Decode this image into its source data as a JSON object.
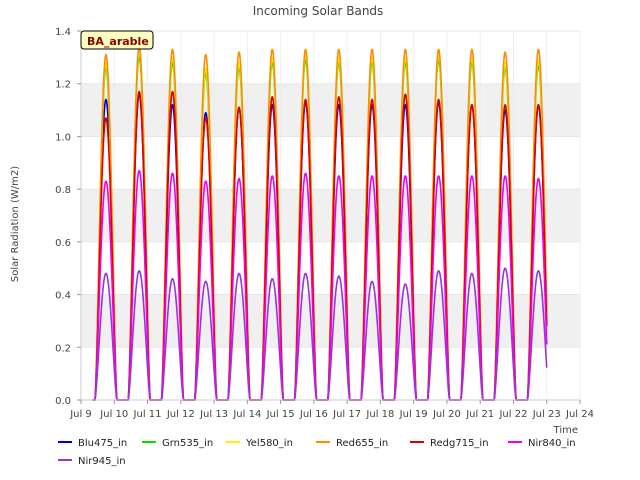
{
  "chart_data": {
    "type": "line",
    "title": "Incoming Solar Bands",
    "xlabel": "Time",
    "ylabel": "Solar Radiation (W/m2)",
    "site_badge": "BA_arable",
    "xlim": [
      9,
      24
    ],
    "ylim": [
      0,
      1.4
    ],
    "x_ticks": [
      {
        "v": 9,
        "label": "Jul 9"
      },
      {
        "v": 10,
        "label": "Jul 10"
      },
      {
        "v": 11,
        "label": "Jul 11"
      },
      {
        "v": 12,
        "label": "Jul 12"
      },
      {
        "v": 13,
        "label": "Jul 13"
      },
      {
        "v": 14,
        "label": "Jul 14"
      },
      {
        "v": 15,
        "label": "Jul 15"
      },
      {
        "v": 16,
        "label": "Jul 16"
      },
      {
        "v": 17,
        "label": "Jul 17"
      },
      {
        "v": 18,
        "label": "Jul 18"
      },
      {
        "v": 19,
        "label": "Jul 19"
      },
      {
        "v": 20,
        "label": "Jul 20"
      },
      {
        "v": 21,
        "label": "Jul 21"
      },
      {
        "v": 22,
        "label": "Jul 22"
      },
      {
        "v": 23,
        "label": "Jul 23"
      },
      {
        "v": 24,
        "label": "Jul 24"
      }
    ],
    "y_ticks": [
      {
        "v": 0.0,
        "label": "0.0"
      },
      {
        "v": 0.2,
        "label": "0.2"
      },
      {
        "v": 0.4,
        "label": "0.4"
      },
      {
        "v": 0.6,
        "label": "0.6"
      },
      {
        "v": 0.8,
        "label": "0.8"
      },
      {
        "v": 1.0,
        "label": "1.0"
      },
      {
        "v": 1.2,
        "label": "1.2"
      },
      {
        "v": 1.4,
        "label": "1.4"
      }
    ],
    "grid": "horizontal-bands",
    "legend_position": "bottom",
    "day_peak_times": [
      9.75,
      10.75,
      11.75,
      12.75,
      13.75,
      14.75,
      15.75,
      16.75,
      17.75,
      18.75,
      19.75,
      20.75,
      21.75,
      22.75
    ],
    "series": [
      {
        "name": "Blu475_in",
        "color": "#0000cc",
        "peaks": [
          1.14,
          1.16,
          1.12,
          1.09,
          1.11,
          1.12,
          1.13,
          1.12,
          1.12,
          1.12,
          1.13,
          1.12,
          1.1,
          1.12
        ]
      },
      {
        "name": "Grn535_in",
        "color": "#00dd00",
        "peaks": [
          1.26,
          1.3,
          1.28,
          1.24,
          1.26,
          1.28,
          1.29,
          1.28,
          1.28,
          1.28,
          1.29,
          1.28,
          1.26,
          1.27
        ]
      },
      {
        "name": "Yel580_in",
        "color": "#ffee00",
        "peaks": [
          1.28,
          1.32,
          1.3,
          1.26,
          1.28,
          1.3,
          1.31,
          1.3,
          1.3,
          1.3,
          1.31,
          1.3,
          1.28,
          1.29
        ]
      },
      {
        "name": "Red655_in",
        "color": "#ff8c00",
        "peaks": [
          1.31,
          1.34,
          1.33,
          1.31,
          1.32,
          1.33,
          1.33,
          1.33,
          1.33,
          1.33,
          1.33,
          1.33,
          1.32,
          1.33
        ]
      },
      {
        "name": "Redg715_in",
        "color": "#dd0000",
        "peaks": [
          1.07,
          1.17,
          1.17,
          1.07,
          1.11,
          1.15,
          1.14,
          1.15,
          1.14,
          1.16,
          1.14,
          1.12,
          1.12,
          1.12
        ]
      },
      {
        "name": "Nir840_in",
        "color": "#ee00ee",
        "peaks": [
          0.83,
          0.87,
          0.86,
          0.83,
          0.84,
          0.85,
          0.86,
          0.85,
          0.85,
          0.85,
          0.85,
          0.85,
          0.85,
          0.84
        ]
      },
      {
        "name": "Nir945_in",
        "color": "#9933dd",
        "peaks": [
          0.48,
          0.49,
          0.46,
          0.45,
          0.48,
          0.46,
          0.48,
          0.47,
          0.45,
          0.44,
          0.49,
          0.48,
          0.5,
          0.49
        ]
      }
    ]
  }
}
